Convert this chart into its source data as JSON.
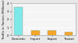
{
  "categories": [
    "Domestic",
    "Import",
    "Export",
    "Transit"
  ],
  "values": [
    3.5,
    0.62,
    0.58,
    0.48
  ],
  "bar_colors": [
    "#7fe8e8",
    "#f5a623",
    "#f5a623",
    "#f5a623"
  ],
  "ylabel": "Traffic in Tonnes (Millions)",
  "ylim": [
    0,
    4.0
  ],
  "yticks": [
    0,
    1,
    2,
    3,
    4
  ],
  "background_color": "#e8e8e8",
  "plot_bg_color": "#f5f5f5",
  "bar_edge_color": "#999999",
  "grid_color": "#ffffff",
  "tick_fontsize": 2.8,
  "ylabel_fontsize": 2.8,
  "bar_width": 0.5
}
